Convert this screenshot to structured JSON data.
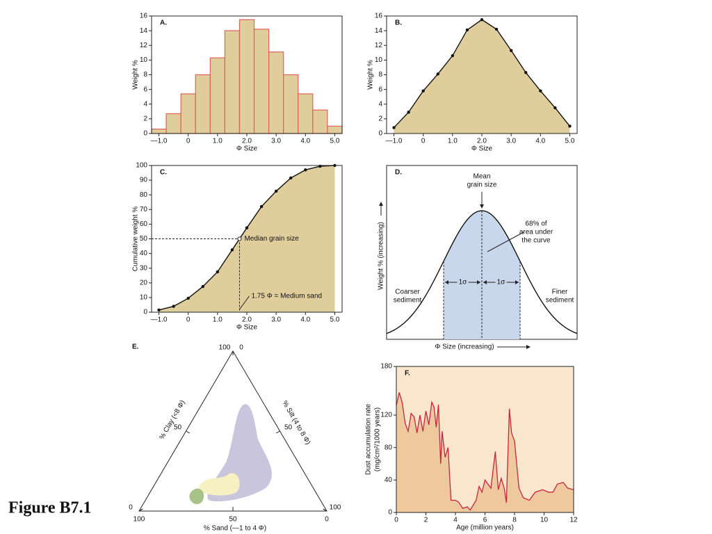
{
  "caption": "Figure B7.1",
  "chart_data": [
    {
      "type": "histogram",
      "title": "A.",
      "xlabel": "Φ Size",
      "ylabel": "Weight %",
      "bins": [
        -1.25,
        -0.75,
        -0.25,
        0.25,
        0.75,
        1.25,
        1.75,
        2.25,
        2.75,
        3.25,
        3.75,
        4.25,
        4.75,
        5.25
      ],
      "values": [
        0.6,
        2.7,
        5.4,
        8.0,
        10.3,
        14.0,
        15.5,
        14.2,
        11.1,
        8.0,
        5.4,
        3.2,
        1.0
      ],
      "color": "#dfcd9c",
      "edge_color": "#e0605a",
      "xlim": [
        -1.25,
        5.25
      ],
      "ylim": [
        0,
        16
      ],
      "xticks": [
        {
          "value": -1,
          "label": "—1.0"
        },
        0,
        {
          "value": 1,
          "label": "1.0"
        },
        {
          "value": 2,
          "label": "2.0"
        },
        {
          "value": 3,
          "label": "3.0"
        },
        {
          "value": 4,
          "label": "4.0"
        },
        {
          "value": 5,
          "label": "5.0"
        }
      ],
      "yticks": [
        0,
        2,
        4,
        6,
        8,
        10,
        12,
        14,
        16
      ]
    },
    {
      "type": "line",
      "title": "B.",
      "xlabel": "Φ Size",
      "ylabel": "Weight %",
      "x": [
        -1,
        -0.5,
        0,
        0.5,
        1,
        1.5,
        2,
        2.5,
        3,
        3.5,
        4,
        4.5,
        5
      ],
      "values": [
        0.8,
        2.9,
        5.8,
        8.1,
        10.6,
        14.1,
        15.5,
        14.2,
        11.3,
        8.3,
        5.8,
        3.5,
        1.0
      ],
      "color": "#111111",
      "fill": "#dfcd9c",
      "markers": true,
      "xlim": [
        -1.25,
        5.25
      ],
      "ylim": [
        0,
        16
      ],
      "xticks": [
        {
          "value": -1,
          "label": "—1.0"
        },
        0,
        {
          "value": 1,
          "label": "1.0"
        },
        {
          "value": 2,
          "label": "2.0"
        },
        {
          "value": 3,
          "label": "3.0"
        },
        {
          "value": 4,
          "label": "4.0"
        },
        {
          "value": 5,
          "label": "5.0"
        }
      ],
      "yticks": [
        0,
        2,
        4,
        6,
        8,
        10,
        12,
        14,
        16
      ]
    },
    {
      "type": "line",
      "title": "C.",
      "xlabel": "Φ Size",
      "ylabel": "Cumulative weight %",
      "x": [
        -1,
        -0.5,
        0,
        0.5,
        1,
        1.5,
        2,
        2.5,
        3,
        3.5,
        4,
        4.5,
        5
      ],
      "values": [
        1.5,
        4,
        9.5,
        17.5,
        27.5,
        42.5,
        57.5,
        72,
        82.5,
        91.5,
        97,
        99.5,
        100
      ],
      "color": "#111111",
      "fill": "#dfcd9c",
      "markers": true,
      "median": {
        "x": 1.75,
        "y": 50,
        "label": "Median grain size",
        "note": "1.75 Φ = Medium sand"
      },
      "xlim": [
        -1.25,
        5.25
      ],
      "ylim": [
        0,
        100
      ],
      "xticks": [
        {
          "value": -1,
          "label": "—1.0"
        },
        0,
        {
          "value": 1,
          "label": "1.0"
        },
        {
          "value": 2,
          "label": "2.0"
        },
        {
          "value": 3,
          "label": "3.0"
        },
        {
          "value": 4,
          "label": "4.0"
        },
        {
          "value": 5,
          "label": "5.0"
        }
      ],
      "yticks": [
        0,
        10,
        20,
        30,
        40,
        50,
        60,
        70,
        80,
        90,
        100
      ]
    },
    {
      "type": "normal-curve",
      "title": "D.",
      "xlabel": "Φ Size (increasing)",
      "ylabel": "Weight % (increasing)",
      "mean_label": [
        "Mean",
        "grain size"
      ],
      "area_label": [
        "68% of",
        "area under",
        "the curve"
      ],
      "left_label": [
        "Coarser",
        "sediment"
      ],
      "right_label": [
        "Finer",
        "sediment"
      ],
      "sigma_labels": [
        "1σ",
        "1σ"
      ],
      "fill": "#c9d7ec"
    },
    {
      "type": "ternary",
      "title": "E.",
      "axes": [
        {
          "label": "% Clay (<8 Φ)",
          "ticks": [
            0,
            50,
            100
          ]
        },
        {
          "label": "% Silt (4 to 8 Φ)",
          "ticks": [
            0,
            50,
            100
          ]
        },
        {
          "label": "% Sand (—1 to 4 Φ)",
          "ticks": [
            100,
            50,
            0
          ]
        }
      ]
    },
    {
      "type": "line",
      "title": "F.",
      "xlabel": "Age (million years)",
      "ylabel": [
        "Dust accumulation rate",
        "(mg/cm²/1000 years)"
      ],
      "x": [
        0,
        0.2,
        0.4,
        0.6,
        0.8,
        1.0,
        1.2,
        1.4,
        1.6,
        1.8,
        2.0,
        2.2,
        2.4,
        2.55,
        2.7,
        2.85,
        3.0,
        3.1,
        3.3,
        3.5,
        3.7,
        4.0,
        4.2,
        4.5,
        4.8,
        5.0,
        5.4,
        5.6,
        5.8,
        6.0,
        6.2,
        6.4,
        6.7,
        6.9,
        7.1,
        7.3,
        7.45,
        7.65,
        7.8,
        8.0,
        8.3,
        8.6,
        9.0,
        9.4,
        9.9,
        10.3,
        10.6,
        10.9,
        11.3,
        11.6,
        12.0
      ],
      "values": [
        132,
        148,
        135,
        110,
        100,
        122,
        118,
        98,
        120,
        100,
        125,
        108,
        136,
        130,
        105,
        133,
        60,
        100,
        68,
        80,
        15,
        15,
        13,
        5,
        7,
        3,
        15,
        32,
        25,
        40,
        35,
        30,
        75,
        28,
        42,
        30,
        12,
        128,
        98,
        88,
        30,
        18,
        15,
        25,
        28,
        25,
        25,
        35,
        37,
        30,
        28
      ],
      "color": "#c5253f",
      "fill": "#efc99e",
      "background": "#f9e6cc",
      "markers": false,
      "xlim": [
        0,
        12
      ],
      "ylim": [
        0,
        180
      ],
      "xticks": [
        0,
        2,
        4,
        6,
        8,
        10,
        12
      ],
      "yticks": [
        0,
        40,
        80,
        120,
        180
      ]
    }
  ]
}
